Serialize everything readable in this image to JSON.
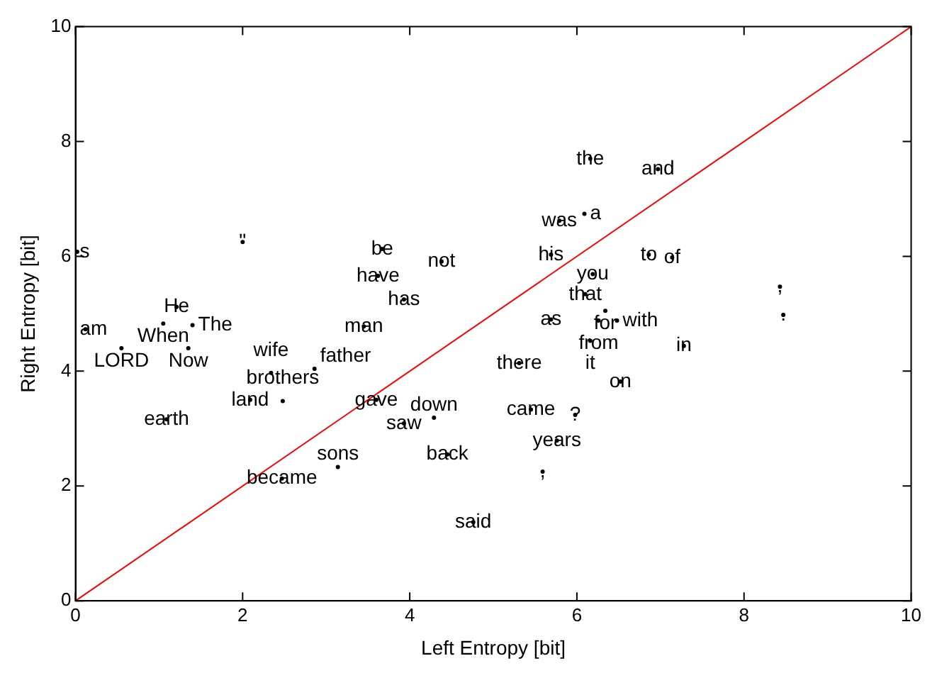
{
  "chart_data": {
    "type": "scatter",
    "xlabel": "Left Entropy [bit]",
    "ylabel": "Right Entropy [bit]",
    "xlim": [
      0,
      10
    ],
    "xticks": [
      0,
      2,
      4,
      6,
      8,
      10
    ],
    "ylim": [
      0,
      10
    ],
    "yticks": [
      0,
      2,
      4,
      6,
      8,
      10
    ],
    "grid": false,
    "legend": false,
    "series": [
      {
        "type": "line",
        "color": "#ff0000",
        "x": [
          0,
          10
        ],
        "values": [
          0,
          10
        ]
      },
      {
        "color": "#000000",
        "x": [
          6.16,
          6.97,
          5.79,
          6.09,
          6.86,
          7.14,
          6.19,
          6.1,
          6.34,
          6.26,
          6.48,
          6.16,
          7.28,
          6.52,
          5.98,
          5.76,
          5.59,
          4.76,
          4.45,
          8.43,
          8.47,
          0.02,
          2.0,
          3.67,
          3.62,
          4.38,
          5.69,
          3.93,
          5.69,
          5.31,
          5.45,
          1.21,
          1.05,
          1.4,
          0.12,
          0.55,
          1.35,
          1.09,
          2.09,
          2.48,
          2.34,
          2.86,
          2.47,
          3.14,
          3.93,
          3.6,
          4.29,
          3.45
        ],
        "values": [
          7.7,
          7.52,
          6.62,
          6.74,
          6.03,
          5.98,
          5.69,
          5.34,
          5.05,
          4.88,
          4.88,
          4.53,
          4.44,
          3.82,
          3.24,
          2.79,
          2.25,
          1.37,
          2.55,
          5.47,
          4.98,
          6.08,
          6.25,
          6.13,
          5.66,
          5.91,
          6.03,
          5.25,
          4.9,
          4.14,
          3.33,
          5.12,
          4.83,
          4.8,
          4.73,
          4.4,
          4.4,
          3.16,
          3.5,
          3.48,
          3.97,
          4.04,
          2.13,
          2.33,
          3.09,
          3.5,
          3.19,
          4.78
        ],
        "value_labels": [
          "the",
          "and",
          "was",
          "a",
          "to",
          "of",
          "you",
          "that",
          "for",
          "from",
          "with",
          "it",
          "in",
          "on",
          "?",
          "years",
          ",",
          "said",
          "back",
          ",",
          ".",
          "s",
          "\"",
          "be",
          "have",
          "not",
          "his",
          "has",
          "as",
          "there",
          "came",
          "He",
          "When",
          "The",
          "am",
          "LORD",
          "Now",
          "earth",
          "land",
          "brothers",
          "wife",
          "father",
          "became",
          "sons",
          "saw",
          "gave",
          "down",
          "man"
        ]
      }
    ]
  }
}
